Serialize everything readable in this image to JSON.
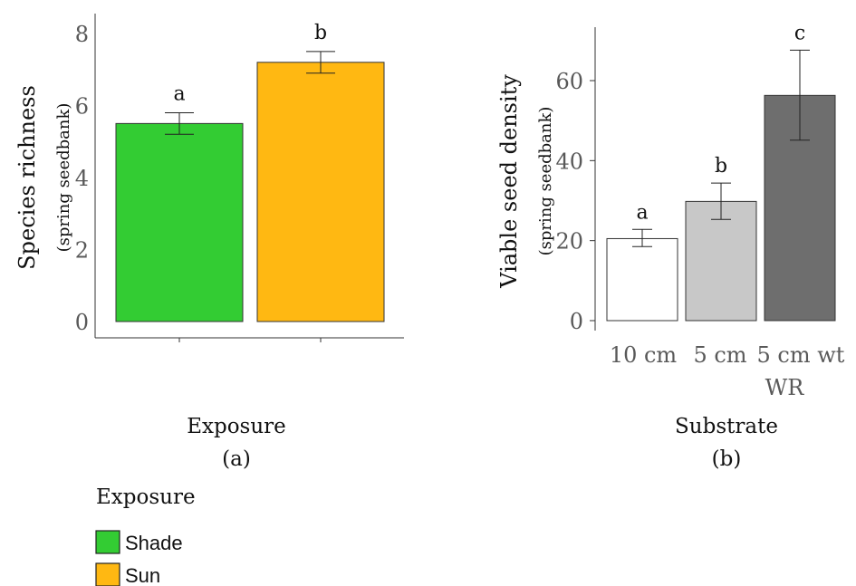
{
  "chart_data": [
    {
      "type": "bar",
      "panel_label": "(a)",
      "xlabel": "Exposure",
      "ylabel": "Species richness",
      "ylabel_sub": "(spring seedbank)",
      "ylim": [
        0,
        8
      ],
      "yticks": [
        "0",
        "2",
        "4",
        "6",
        "8"
      ],
      "categories": [
        "Shade",
        "Sun"
      ],
      "values": [
        5.5,
        7.2
      ],
      "error": [
        [
          5.2,
          5.8
        ],
        [
          6.9,
          7.5
        ]
      ],
      "significance": [
        "a",
        "b"
      ],
      "colors": [
        "#33cc33",
        "#ffb812"
      ]
    },
    {
      "type": "bar",
      "panel_label": "(b)",
      "xlabel": "Substrate",
      "ylabel": "Viable seed density",
      "ylabel_sub": "(spring seedbank)",
      "ylim": [
        0,
        70
      ],
      "yticks": [
        "0",
        "20",
        "40",
        "60"
      ],
      "categories": [
        "10 cm",
        "5 cm",
        "5 cm wt WR"
      ],
      "values": [
        20.5,
        29.8,
        56.3
      ],
      "error": [
        [
          18.5,
          22.8
        ],
        [
          25.3,
          34.4
        ],
        [
          45.1,
          67.6
        ]
      ],
      "significance": [
        "a",
        "b",
        "c"
      ],
      "colors": [
        "#ffffff",
        "#c8c8c8",
        "#6e6e6e"
      ]
    }
  ],
  "legend": {
    "title": "Exposure",
    "items": [
      {
        "label": "Shade",
        "color": "#33cc33"
      },
      {
        "label": "Sun",
        "color": "#ffb812"
      }
    ]
  }
}
